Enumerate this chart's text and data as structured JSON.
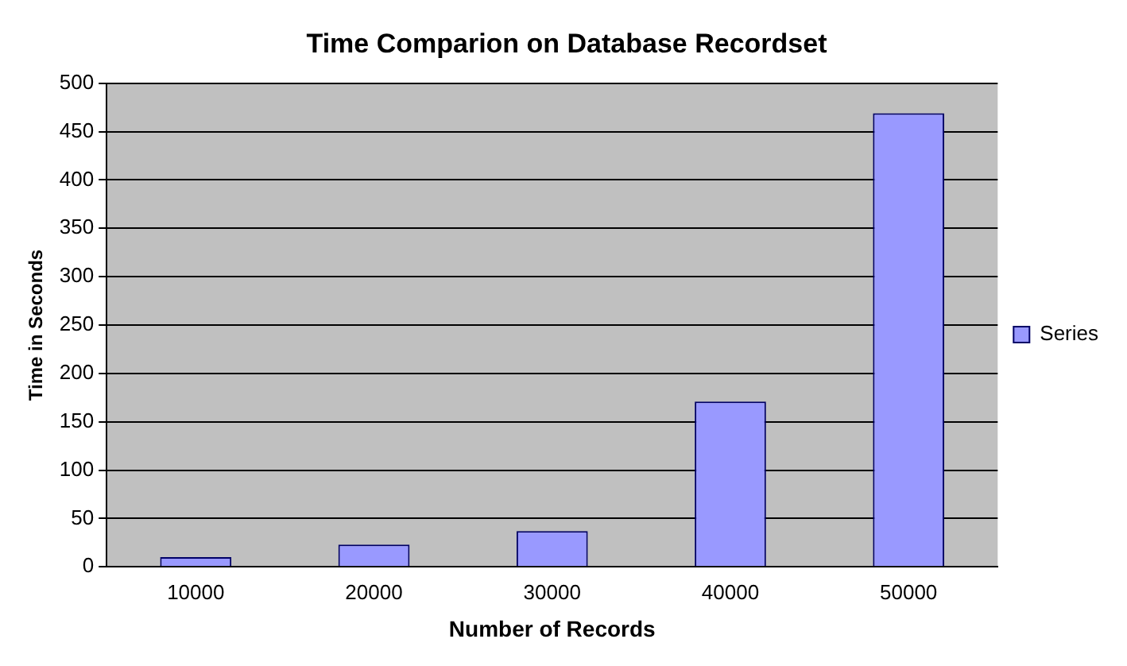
{
  "chart_data": {
    "type": "bar",
    "title": "Time Comparion on Database Recordset",
    "xlabel": "Number of Records",
    "ylabel": "Time in Seconds",
    "categories": [
      "10000",
      "20000",
      "30000",
      "40000",
      "50000"
    ],
    "series": [
      {
        "name": "Series",
        "color": "#9999ff",
        "values": [
          10,
          23,
          37,
          171,
          469
        ]
      }
    ],
    "ylim": [
      0,
      500
    ],
    "yticks": [
      0,
      50,
      100,
      150,
      200,
      250,
      300,
      350,
      400,
      450,
      500
    ],
    "grid": "y",
    "legend": "right"
  }
}
